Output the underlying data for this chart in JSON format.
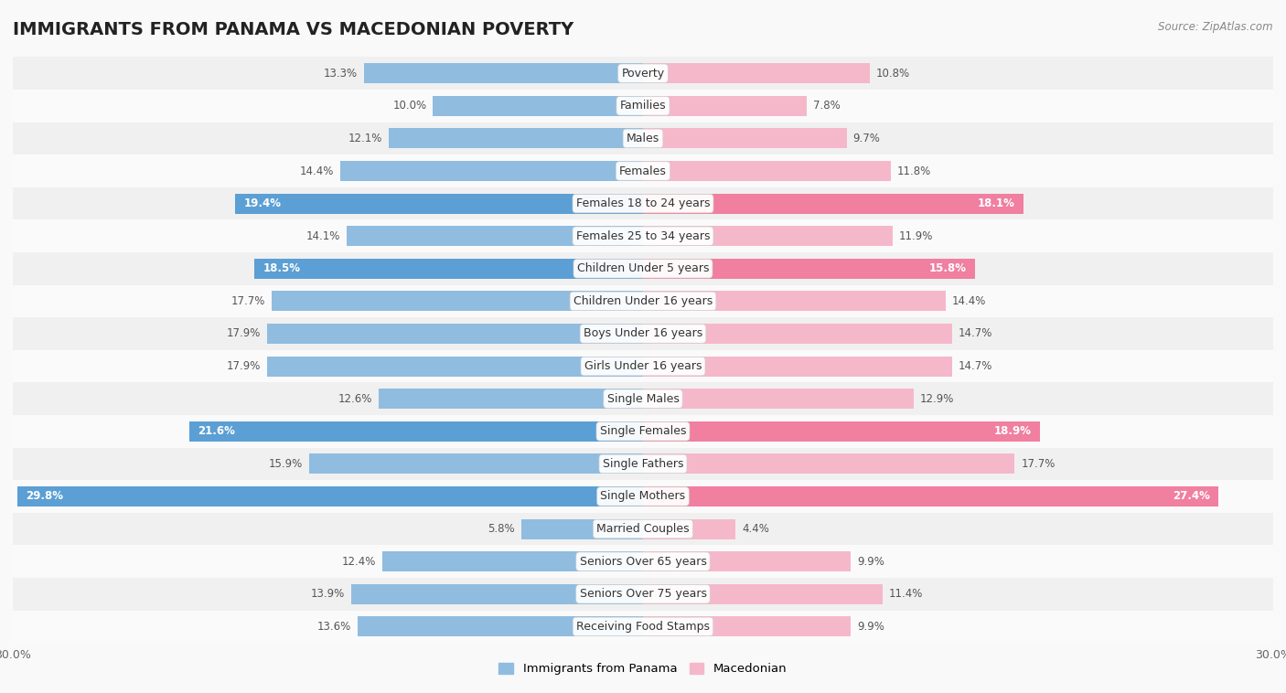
{
  "title": "IMMIGRANTS FROM PANAMA VS MACEDONIAN POVERTY",
  "source": "Source: ZipAtlas.com",
  "categories": [
    "Poverty",
    "Families",
    "Males",
    "Females",
    "Females 18 to 24 years",
    "Females 25 to 34 years",
    "Children Under 5 years",
    "Children Under 16 years",
    "Boys Under 16 years",
    "Girls Under 16 years",
    "Single Males",
    "Single Females",
    "Single Fathers",
    "Single Mothers",
    "Married Couples",
    "Seniors Over 65 years",
    "Seniors Over 75 years",
    "Receiving Food Stamps"
  ],
  "panama_values": [
    13.3,
    10.0,
    12.1,
    14.4,
    19.4,
    14.1,
    18.5,
    17.7,
    17.9,
    17.9,
    12.6,
    21.6,
    15.9,
    29.8,
    5.8,
    12.4,
    13.9,
    13.6
  ],
  "macedonian_values": [
    10.8,
    7.8,
    9.7,
    11.8,
    18.1,
    11.9,
    15.8,
    14.4,
    14.7,
    14.7,
    12.9,
    18.9,
    17.7,
    27.4,
    4.4,
    9.9,
    11.4,
    9.9
  ],
  "panama_color": "#90bce0",
  "macedonian_color": "#f5b8cb",
  "panama_highlight_color": "#5b9fd4",
  "macedonian_highlight_color": "#f07fa0",
  "highlight_rows": [
    4,
    6,
    11,
    13
  ],
  "xlim": 30.0,
  "background_color": "#f9f9f9",
  "row_bg_light": "#f0f0f0",
  "row_bg_dark": "#e2e2e2",
  "legend_panama": "Immigrants from Panama",
  "legend_macedonian": "Macedonian",
  "bar_height": 0.62,
  "title_fontsize": 14,
  "label_fontsize": 9,
  "value_fontsize": 8.5,
  "axis_fontsize": 9
}
